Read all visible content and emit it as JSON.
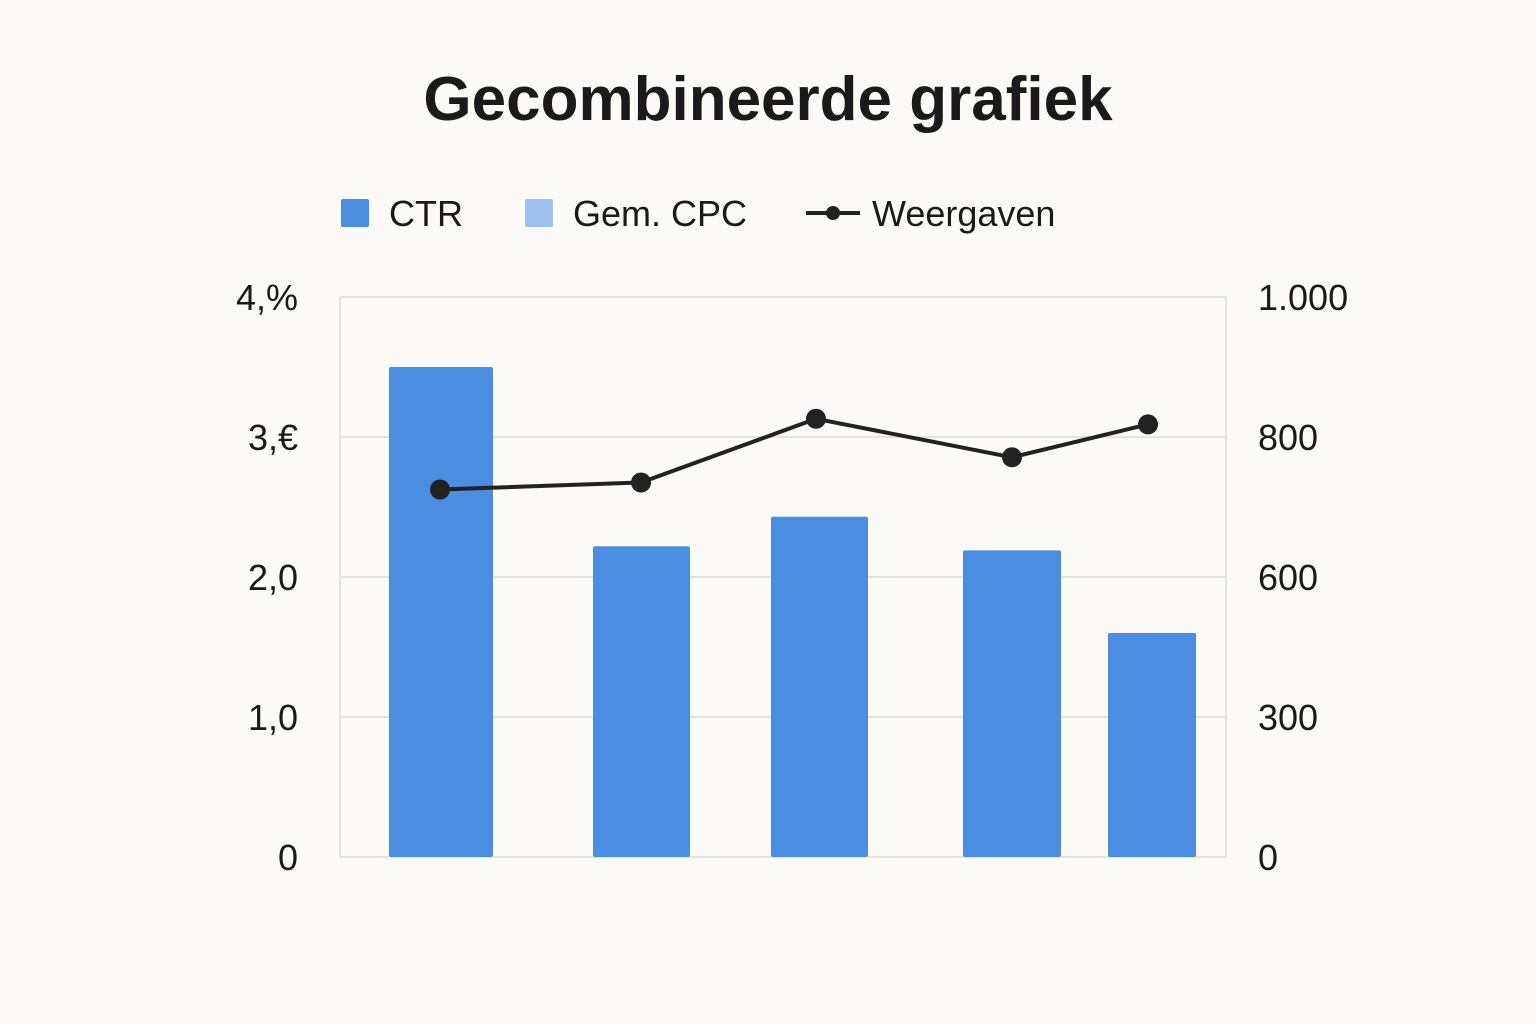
{
  "chart_data": {
    "type": "bar",
    "title": "Gecombineerde grafiek",
    "colors": {
      "ctr": "#4a8de1",
      "cpc": "#9dc2f2",
      "line": "#222222",
      "grid": "#e4e2de"
    },
    "legend": {
      "placement": "top",
      "items": [
        {
          "label": "CTR",
          "marker": "square",
          "color": "#4a8de1"
        },
        {
          "label": "Gem. CPC",
          "marker": "square",
          "color": "#9dc2f2"
        },
        {
          "label": "Weergaven",
          "marker": "line",
          "color": "#222222"
        }
      ]
    },
    "y_left": {
      "ticks": [
        0,
        1,
        2,
        3,
        4
      ],
      "tick_labels": [
        "0",
        "1,0",
        "2,0",
        "3,€",
        "4,%"
      ],
      "range": [
        0,
        4
      ]
    },
    "y_right": {
      "ticks": [
        0,
        300,
        600,
        800,
        1000
      ],
      "tick_labels": [
        "0",
        "300",
        "600",
        "800",
        "1.000"
      ],
      "positions": [
        0,
        1,
        2,
        3,
        4
      ]
    },
    "grid": true,
    "bars": {
      "name": "CTR",
      "values": [
        3.5,
        2.22,
        2.43,
        2.19,
        1.6
      ]
    },
    "line": {
      "name": "Weergaven",
      "values": [
        725,
        735,
        826,
        771,
        818
      ]
    }
  }
}
